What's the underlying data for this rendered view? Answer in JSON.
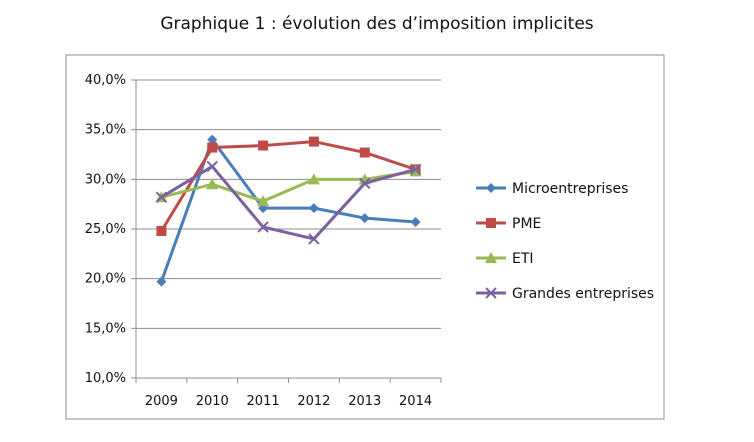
{
  "chart_data": {
    "type": "line",
    "title": "Graphique 1 : évolution des d’imposition implicites",
    "xlabel": "",
    "ylabel": "",
    "categories": [
      "2009",
      "2010",
      "2011",
      "2012",
      "2013",
      "2014"
    ],
    "ylim": [
      10,
      40
    ],
    "y_ticks": [
      10,
      15,
      20,
      25,
      30,
      35,
      40
    ],
    "y_tick_labels": [
      "10,0%",
      "15,0%",
      "20,0%",
      "25,0%",
      "30,0%",
      "35,0%",
      "40,0%"
    ],
    "grid": "horizontal",
    "legend_position": "right",
    "series": [
      {
        "name": "Microentreprises",
        "color": "#4a7ebb",
        "marker": "diamond",
        "values": [
          19.7,
          34.0,
          27.1,
          27.1,
          26.1,
          25.7
        ]
      },
      {
        "name": "PME",
        "color": "#be4b48",
        "marker": "square",
        "values": [
          24.8,
          33.2,
          33.4,
          33.8,
          32.7,
          31.0
        ]
      },
      {
        "name": "ETI",
        "color": "#98b954",
        "marker": "triangle",
        "values": [
          28.2,
          29.5,
          27.8,
          30.0,
          30.0,
          30.8
        ]
      },
      {
        "name": "Grandes entreprises",
        "color": "#7d60a0",
        "marker": "x",
        "values": [
          28.2,
          31.3,
          25.2,
          24.0,
          29.6,
          31.0
        ]
      }
    ]
  }
}
